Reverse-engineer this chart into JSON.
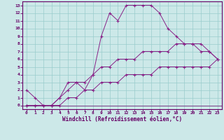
{
  "xlabel": "Windchill (Refroidissement éolien,°C)",
  "xlim": [
    0,
    23
  ],
  "ylim": [
    0,
    13
  ],
  "xticks": [
    0,
    1,
    2,
    3,
    4,
    5,
    6,
    7,
    8,
    9,
    10,
    11,
    12,
    13,
    14,
    15,
    16,
    17,
    18,
    19,
    20,
    21,
    22,
    23
  ],
  "yticks": [
    0,
    1,
    2,
    3,
    4,
    5,
    6,
    7,
    8,
    9,
    10,
    11,
    12,
    13
  ],
  "bg_color": "#cce8e8",
  "line_color": "#882288",
  "grid_color": "#99cccc",
  "spine_color": "#660066",
  "tick_label_color": "#660066",
  "series1_x": [
    0,
    1,
    2,
    3,
    4,
    5,
    6,
    7,
    8,
    9,
    10,
    11,
    12,
    13,
    14,
    15,
    16,
    17,
    18,
    19,
    20,
    21,
    22,
    23
  ],
  "series1_y": [
    2,
    1,
    0,
    0,
    1,
    3,
    3,
    2,
    4,
    9,
    12,
    11,
    13,
    13,
    13,
    13,
    12,
    10,
    9,
    8,
    8,
    7,
    7,
    6
  ],
  "series2_x": [
    0,
    1,
    2,
    3,
    4,
    5,
    6,
    7,
    8,
    9,
    10,
    11,
    12,
    13,
    14,
    15,
    16,
    17,
    18,
    19,
    20,
    21,
    22,
    23
  ],
  "series2_y": [
    0,
    0,
    0,
    0,
    1,
    2,
    3,
    3,
    4,
    5,
    5,
    6,
    6,
    6,
    7,
    7,
    7,
    7,
    8,
    8,
    8,
    8,
    7,
    6
  ],
  "series3_x": [
    0,
    1,
    2,
    3,
    4,
    5,
    6,
    7,
    8,
    9,
    10,
    11,
    12,
    13,
    14,
    15,
    16,
    17,
    18,
    19,
    20,
    21,
    22,
    23
  ],
  "series3_y": [
    0,
    0,
    0,
    0,
    0,
    1,
    1,
    2,
    2,
    3,
    3,
    3,
    4,
    4,
    4,
    4,
    5,
    5,
    5,
    5,
    5,
    5,
    5,
    6
  ]
}
